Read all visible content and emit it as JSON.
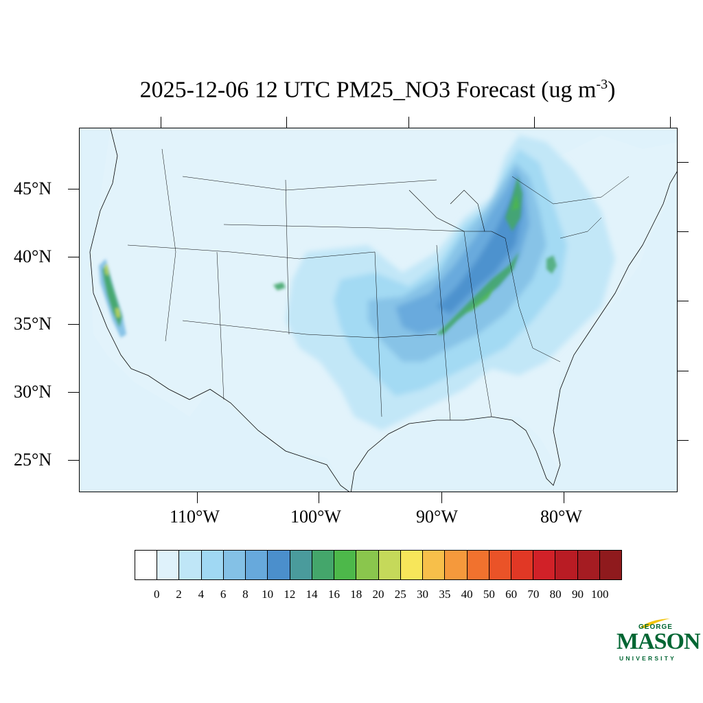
{
  "title": {
    "text": "2025-12-06 12 UTC PM25_NO3 Forecast (ug m",
    "superscript": "-3",
    "closing": ")"
  },
  "map": {
    "background_color": "#dff2fb",
    "lat_labels": [
      "45°N",
      "40°N",
      "35°N",
      "30°N",
      "25°N"
    ],
    "lon_labels": [
      "110°W",
      "100°W",
      "90°W",
      "80°W"
    ]
  },
  "colorbar": {
    "labels": [
      "0",
      "2",
      "4",
      "6",
      "8",
      "10",
      "12",
      "14",
      "16",
      "18",
      "20",
      "25",
      "30",
      "35",
      "40",
      "50",
      "60",
      "70",
      "80",
      "90",
      "100"
    ],
    "colors": [
      "#ffffff",
      "#dff2fb",
      "#bfe6f7",
      "#a0d8f3",
      "#84c1e6",
      "#67a9dc",
      "#4b8fcc",
      "#4a9b9c",
      "#44a66b",
      "#4db84a",
      "#8ac64d",
      "#c5d95a",
      "#f7e65a",
      "#f7bf4a",
      "#f5993c",
      "#f1722e",
      "#ea5328",
      "#e13825",
      "#d12128",
      "#b91c24",
      "#a51c22",
      "#8f1a1d"
    ]
  },
  "logo": {
    "george": "GEORGE",
    "mason": "MASON",
    "university": "UNIVERSITY"
  }
}
